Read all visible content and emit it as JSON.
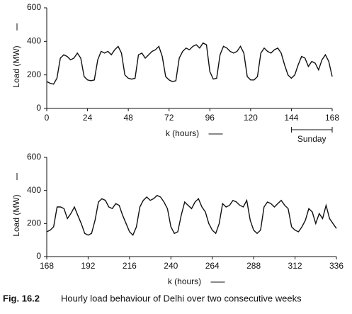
{
  "chart_data": [
    {
      "type": "line",
      "xlabel": "k (hours)",
      "ylabel": "Load (MW)",
      "annotation": "Sunday",
      "xlim": [
        0,
        168
      ],
      "ylim": [
        0,
        600
      ],
      "xticks": [
        0,
        24,
        48,
        72,
        96,
        120,
        144,
        168
      ],
      "yticks": [
        0,
        200,
        400,
        600
      ],
      "color": "#111111",
      "x": [
        0,
        2,
        4,
        6,
        8,
        10,
        12,
        14,
        16,
        18,
        20,
        22,
        24,
        26,
        28,
        30,
        32,
        34,
        36,
        38,
        40,
        42,
        44,
        46,
        48,
        50,
        52,
        54,
        56,
        58,
        60,
        62,
        64,
        66,
        68,
        70,
        72,
        74,
        76,
        78,
        80,
        82,
        84,
        86,
        88,
        90,
        92,
        94,
        96,
        98,
        100,
        102,
        104,
        106,
        108,
        110,
        112,
        114,
        116,
        118,
        120,
        122,
        124,
        126,
        128,
        130,
        132,
        134,
        136,
        138,
        140,
        142,
        144,
        146,
        148,
        150,
        152,
        154,
        156,
        158,
        160,
        162,
        164,
        166,
        168
      ],
      "values": [
        160,
        150,
        145,
        180,
        300,
        320,
        310,
        290,
        300,
        330,
        300,
        190,
        170,
        165,
        170,
        290,
        340,
        330,
        340,
        320,
        350,
        370,
        330,
        200,
        180,
        175,
        180,
        320,
        330,
        300,
        320,
        340,
        350,
        370,
        310,
        190,
        170,
        160,
        165,
        300,
        340,
        360,
        350,
        370,
        380,
        360,
        390,
        380,
        220,
        175,
        180,
        320,
        370,
        360,
        340,
        330,
        340,
        370,
        330,
        190,
        170,
        170,
        190,
        330,
        360,
        340,
        330,
        350,
        360,
        330,
        260,
        200,
        180,
        200,
        260,
        310,
        300,
        250,
        280,
        270,
        230,
        290,
        320,
        280,
        190
      ]
    },
    {
      "type": "line",
      "xlabel": "k (hours)",
      "ylabel": "Load (MW)",
      "xlim": [
        168,
        336
      ],
      "ylim": [
        0,
        600
      ],
      "xticks": [
        168,
        192,
        216,
        240,
        264,
        288,
        312,
        336
      ],
      "yticks": [
        0,
        200,
        400,
        600
      ],
      "color": "#111111",
      "x": [
        168,
        170,
        172,
        174,
        176,
        178,
        180,
        182,
        184,
        186,
        188,
        190,
        192,
        194,
        196,
        198,
        200,
        202,
        204,
        206,
        208,
        210,
        212,
        214,
        216,
        218,
        220,
        222,
        224,
        226,
        228,
        230,
        232,
        234,
        236,
        238,
        240,
        242,
        244,
        246,
        248,
        250,
        252,
        254,
        256,
        258,
        260,
        262,
        264,
        266,
        268,
        270,
        272,
        274,
        276,
        278,
        280,
        282,
        284,
        286,
        288,
        290,
        292,
        294,
        296,
        298,
        300,
        302,
        304,
        306,
        308,
        310,
        312,
        314,
        316,
        318,
        320,
        322,
        324,
        326,
        328,
        330,
        332,
        334,
        336
      ],
      "values": [
        150,
        160,
        180,
        300,
        300,
        290,
        230,
        260,
        300,
        250,
        200,
        140,
        130,
        140,
        220,
        330,
        350,
        340,
        300,
        290,
        320,
        310,
        250,
        200,
        150,
        130,
        180,
        300,
        340,
        360,
        340,
        350,
        370,
        360,
        330,
        290,
        180,
        140,
        150,
        250,
        330,
        310,
        290,
        330,
        350,
        300,
        270,
        200,
        160,
        140,
        200,
        320,
        300,
        310,
        340,
        330,
        310,
        300,
        340,
        220,
        160,
        140,
        160,
        300,
        330,
        320,
        300,
        320,
        340,
        310,
        290,
        180,
        160,
        150,
        180,
        220,
        290,
        270,
        200,
        260,
        230,
        310,
        230,
        200,
        170
      ]
    }
  ],
  "caption": {
    "label": "Fig. 16.2",
    "text": "Hourly load behaviour of Delhi over two consecutive weeks"
  }
}
